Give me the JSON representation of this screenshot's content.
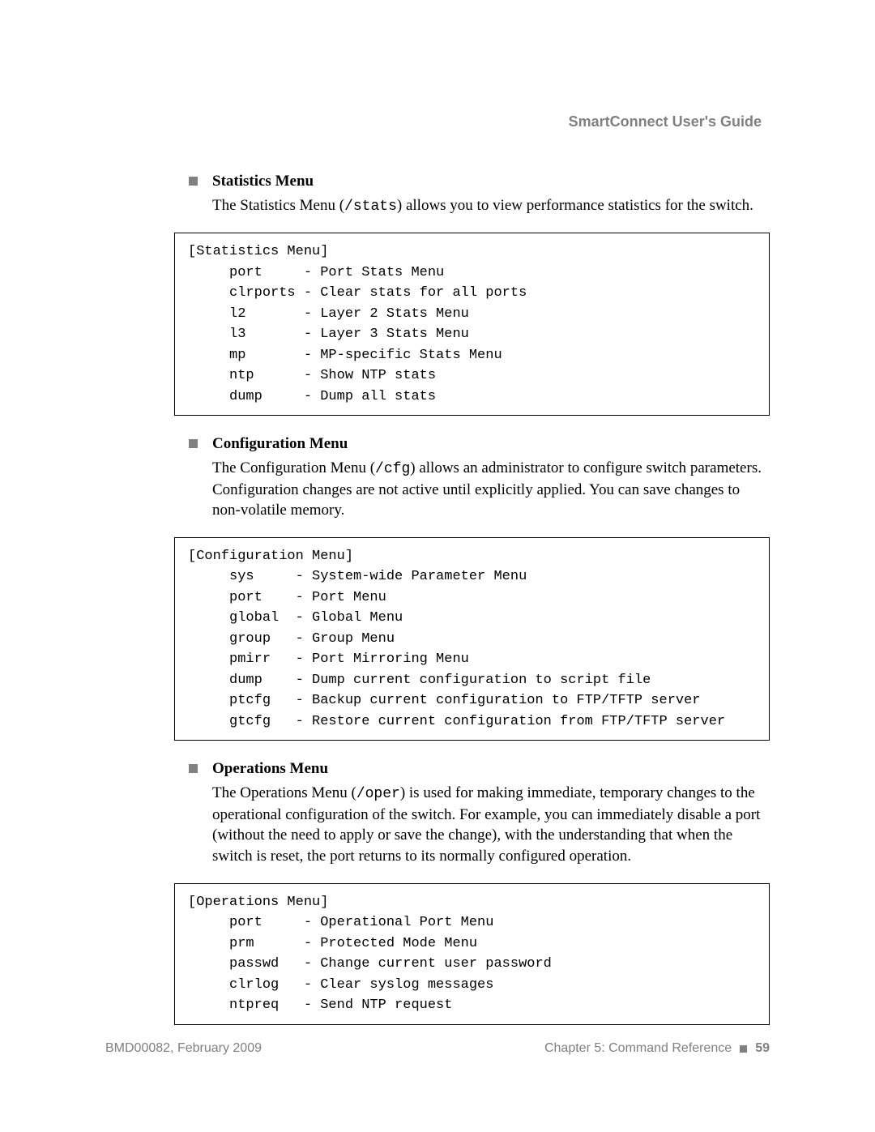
{
  "header": {
    "guide_title": "SmartConnect User's Guide"
  },
  "sections": [
    {
      "title": "Statistics Menu",
      "body_parts": [
        "The Statistics Menu (",
        "/stats",
        ") allows you to view performance statistics for the switch."
      ],
      "code": "[Statistics Menu]\n     port     - Port Stats Menu\n     clrports - Clear stats for all ports\n     l2       - Layer 2 Stats Menu\n     l3       - Layer 3 Stats Menu\n     mp       - MP-specific Stats Menu\n     ntp      - Show NTP stats\n     dump     - Dump all stats"
    },
    {
      "title": "Configuration Menu",
      "body_parts": [
        "The Configuration Menu (",
        "/cfg",
        ") allows an administrator to configure switch parameters. Configuration changes are not active until explicitly applied. You can save changes to non-volatile memory."
      ],
      "code": "[Configuration Menu]\n     sys     - System-wide Parameter Menu\n     port    - Port Menu\n     global  - Global Menu\n     group   - Group Menu\n     pmirr   - Port Mirroring Menu\n     dump    - Dump current configuration to script file\n     ptcfg   - Backup current configuration to FTP/TFTP server\n     gtcfg   - Restore current configuration from FTP/TFTP server"
    },
    {
      "title": "Operations Menu",
      "body_parts": [
        "The Operations Menu (",
        "/oper",
        ") is used for making immediate, temporary changes to the operational configuration of the switch. For example, you can immediately disable a port (without the need to apply or save the change), with the understanding that when the switch is reset, the port returns to its normally configured operation."
      ],
      "code": "[Operations Menu]\n     port     - Operational Port Menu\n     prm      - Protected Mode Menu\n     passwd   - Change current user password\n     clrlog   - Clear syslog messages\n     ntpreq   - Send NTP request"
    }
  ],
  "footer": {
    "left": "BMD00082, February 2009",
    "right_chapter": "Chapter 5: Command Reference",
    "page_number": "59"
  }
}
